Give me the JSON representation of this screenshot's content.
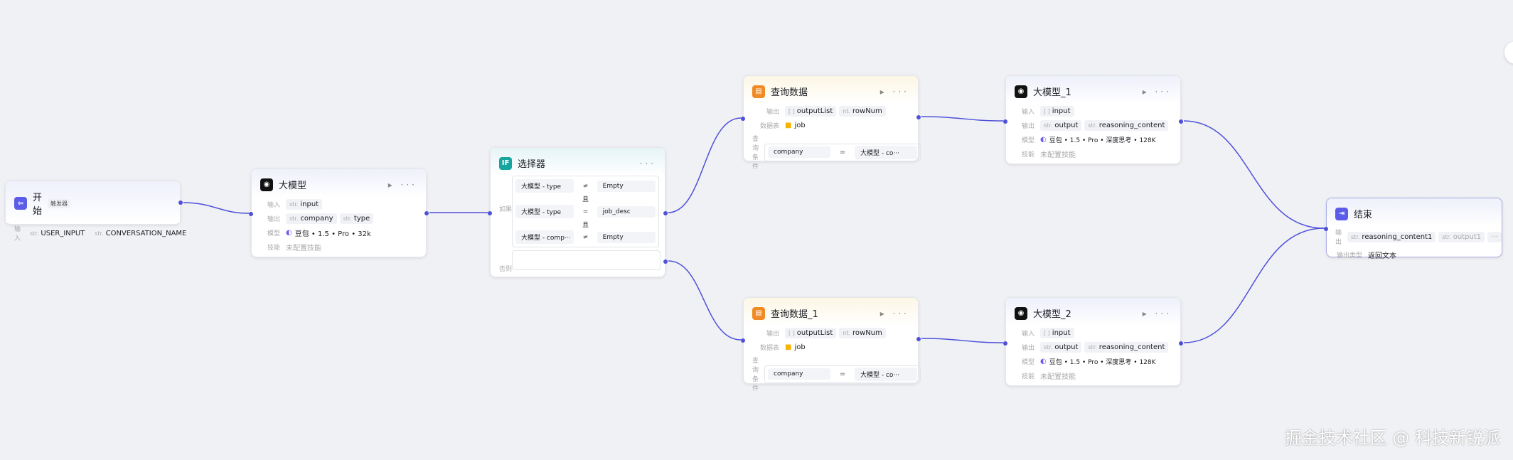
{
  "start": {
    "title": "开始",
    "badge": "触发器",
    "input_label": "输入",
    "inputs": [
      "USER_INPUT",
      "CONVERSATION_NAME"
    ]
  },
  "llm": {
    "title": "大模型",
    "input_label": "输入",
    "output_label": "输出",
    "model_label": "模型",
    "skill_label": "技能",
    "inputs": [
      "input"
    ],
    "outputs": [
      "company",
      "type"
    ],
    "model": "豆包 • 1.5 • Pro • 32k",
    "skill": "未配置技能"
  },
  "selector": {
    "title": "选择器",
    "if_label": "如果",
    "else_label": "否则",
    "and_label": "且",
    "conditions": [
      {
        "left": "大模型  -  type",
        "op": "≠",
        "right": "Empty"
      },
      {
        "left": "大模型  -  type",
        "op": "=",
        "right": "job_desc"
      },
      {
        "left": "大模型  -  comp···",
        "op": "≠",
        "right": "Empty"
      }
    ]
  },
  "query": {
    "title": "查询数据",
    "output_label": "输出",
    "table_label": "数据表",
    "cond_label": "查询条件",
    "outputs": [
      "outputList",
      "rowNum"
    ],
    "table": "job",
    "cond_left": "company",
    "cond_op": "=",
    "cond_right": "大模型  -  co···"
  },
  "query1": {
    "title": "查询数据_1",
    "output_label": "输出",
    "table_label": "数据表",
    "cond_label": "查询条件",
    "outputs": [
      "outputList",
      "rowNum"
    ],
    "table": "job",
    "cond_left": "company",
    "cond_op": "=",
    "cond_right": "大模型  -  co···"
  },
  "llm1": {
    "title": "大模型_1",
    "input_label": "输入",
    "output_label": "输出",
    "model_label": "模型",
    "skill_label": "技能",
    "inputs": [
      "input"
    ],
    "outputs": [
      "output",
      "reasoning_content"
    ],
    "model": "豆包 • 1.5 • Pro • 深度思考 • 128K",
    "skill": "未配置技能"
  },
  "llm2": {
    "title": "大模型_2",
    "input_label": "输入",
    "output_label": "输出",
    "model_label": "模型",
    "skill_label": "技能",
    "inputs": [
      "input"
    ],
    "outputs": [
      "output",
      "reasoning_content"
    ],
    "model": "豆包 • 1.5 • Pro • 深度思考 • 128K",
    "skill": "未配置技能"
  },
  "end": {
    "title": "结束",
    "output_label": "输出",
    "type_label": "输出类型",
    "outputs": [
      "reasoning_content1",
      "output1"
    ],
    "more": "···",
    "type": "返回文本"
  },
  "type_prefix": {
    "str": "str.",
    "num": "nt.",
    "arr": "[ ]"
  },
  "watermark": "掘金技术社区 @ 科技新锐派",
  "colors": {
    "edge": "#4e50d9",
    "start": "#5b5ce8",
    "llm": "#111111",
    "selector": "#17a5a0",
    "query": "#f08a24",
    "end": "#5b5ce8"
  }
}
